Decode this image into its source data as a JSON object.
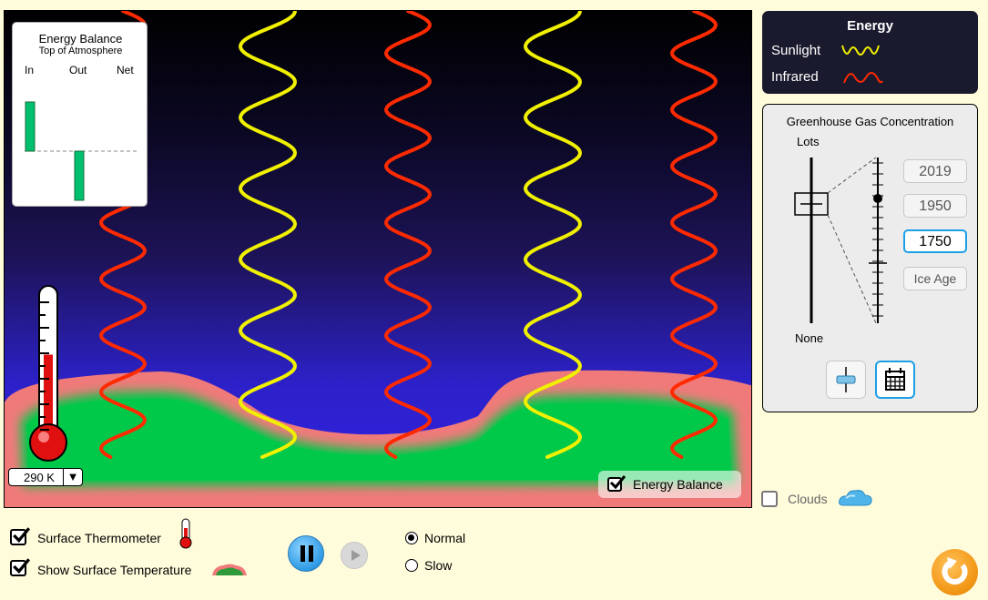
{
  "energy_balance_panel": {
    "title": "Energy Balance",
    "subtitle": "Top of Atmosphere",
    "columns": [
      "In",
      "Out",
      "Net"
    ],
    "in_value": 1.0,
    "out_value": -1.0,
    "net_value": 0.0
  },
  "thermometer": {
    "readout": "290 K",
    "dropdown_icon": "triangle-down-icon",
    "fill_fraction": 0.55
  },
  "energy_balance_toggle": {
    "label": "Energy Balance",
    "checked": true
  },
  "legend": {
    "title": "Energy",
    "sunlight_label": "Sunlight",
    "infrared_label": "Infrared",
    "sunlight_color": "#f0f000",
    "infrared_color": "#ff2a00"
  },
  "greenhouse": {
    "title": "Greenhouse Gas Concentration",
    "top_label": "Lots",
    "bottom_label": "None",
    "buttons": [
      "2019",
      "1950",
      "1750",
      "Ice Age"
    ],
    "selected": "1750",
    "mode_slider_icon": "slider-icon",
    "mode_calendar_icon": "calendar-icon"
  },
  "clouds": {
    "label": "Clouds",
    "checked": false,
    "icon": "cloud-icon"
  },
  "bottom": {
    "surface_thermometer_label": "Surface Thermometer",
    "surface_thermometer_checked": true,
    "show_surface_temp_label": "Show Surface Temperature",
    "show_surface_temp_checked": true,
    "speed_normal": "Normal",
    "speed_slow": "Slow",
    "speed_selected": "Normal"
  },
  "colors": {
    "ground_green": "#00c94a",
    "ground_glow": "#f07a7a",
    "button_accent": "#1ba0e6",
    "reset_orange": "#f39a1a"
  }
}
